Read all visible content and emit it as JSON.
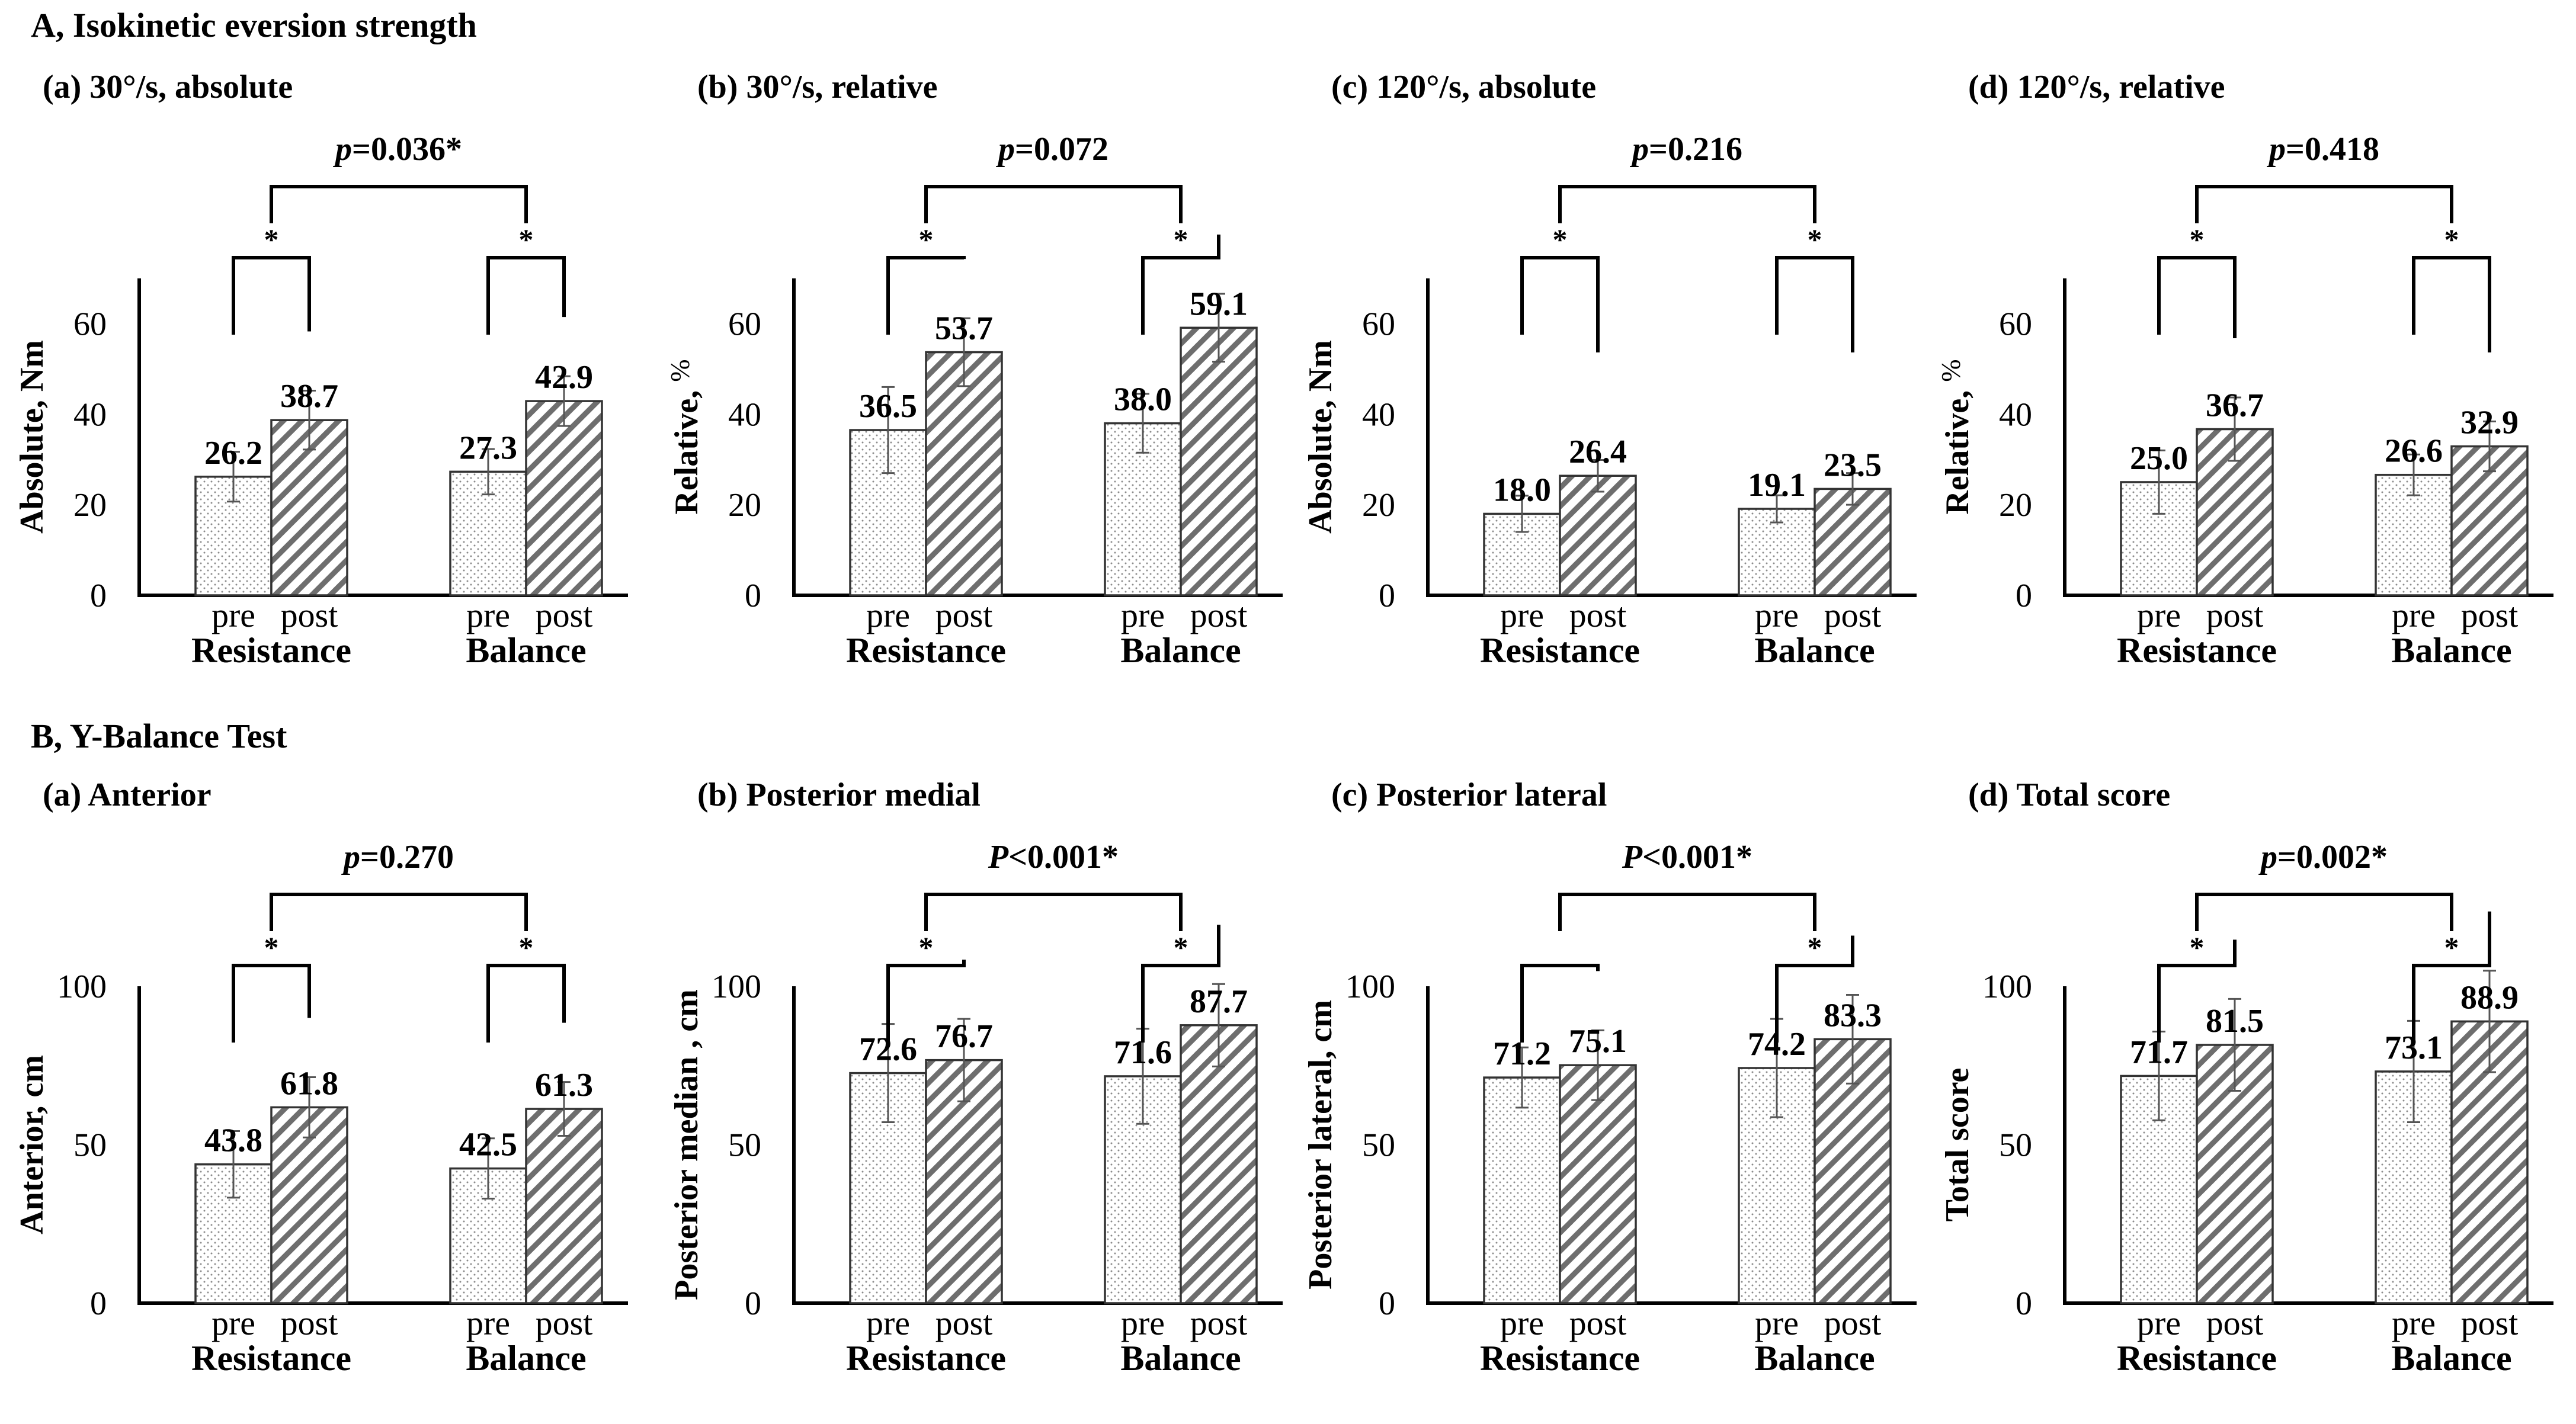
{
  "figure": {
    "section_a_title": "A, Isokinetic eversion strength",
    "section_b_title": "B, Y-Balance Test",
    "colors": {
      "axis": "#000000",
      "bar_stroke": "#333333",
      "pre_dots": "#8c8c8c",
      "post_hatch": "#6e6e6e",
      "error_bar": "#555555"
    }
  },
  "chart_data": [
    {
      "type": "bar",
      "panel": "A(a)",
      "title": "(a) 30°/s, absolute",
      "ylabel": "Absolute, Nm",
      "ylim": [
        0,
        70
      ],
      "yticks": [
        0,
        20,
        40,
        60
      ],
      "groups": [
        "Resistance",
        "Balance"
      ],
      "categories": [
        "pre",
        "post"
      ],
      "series": [
        {
          "name": "Resistance",
          "values": [
            26.2,
            38.7
          ],
          "labels": [
            "26.2",
            "38.7"
          ],
          "errors": [
            5.5,
            6.5
          ]
        },
        {
          "name": "Balance",
          "values": [
            27.3,
            42.9
          ],
          "labels": [
            "27.3",
            "42.9"
          ],
          "errors": [
            5.0,
            5.5
          ]
        }
      ],
      "within_sig": [
        "*",
        "*"
      ],
      "p_between": [
        "p",
        "=0.036*"
      ]
    },
    {
      "type": "bar",
      "panel": "A(b)",
      "title": "(b) 30°/s, relative",
      "ylabel": [
        "Relative,",
        "%"
      ],
      "ylim": [
        0,
        70
      ],
      "yticks": [
        0,
        20,
        40,
        60
      ],
      "groups": [
        "Resistance",
        "Balance"
      ],
      "categories": [
        "pre",
        "post"
      ],
      "series": [
        {
          "name": "Resistance",
          "values": [
            36.5,
            53.7
          ],
          "labels": [
            "36.5",
            "53.7"
          ],
          "errors": [
            9.5,
            7.5
          ]
        },
        {
          "name": "Balance",
          "values": [
            38.0,
            59.1
          ],
          "labels": [
            "38.0",
            "59.1"
          ],
          "errors": [
            6.5,
            7.5
          ]
        }
      ],
      "within_sig": [
        "*",
        "*"
      ],
      "p_between": [
        "p",
        "=0.072"
      ]
    },
    {
      "type": "bar",
      "panel": "A(c)",
      "title": "(c) 120°/s, absolute",
      "ylabel": "Absolute, Nm",
      "ylim": [
        0,
        70
      ],
      "yticks": [
        0,
        20,
        40,
        60
      ],
      "groups": [
        "Resistance",
        "Balance"
      ],
      "categories": [
        "pre",
        "post"
      ],
      "series": [
        {
          "name": "Resistance",
          "values": [
            18.0,
            26.4
          ],
          "labels": [
            "18.0",
            "26.4"
          ],
          "errors": [
            4.0,
            3.5
          ]
        },
        {
          "name": "Balance",
          "values": [
            19.1,
            23.5
          ],
          "labels": [
            "19.1",
            "23.5"
          ],
          "errors": [
            3.0,
            3.5
          ]
        }
      ],
      "within_sig": [
        "*",
        "*"
      ],
      "p_between": [
        "p",
        "=0.216"
      ]
    },
    {
      "type": "bar",
      "panel": "A(d)",
      "title": "(d) 120°/s, relative",
      "ylabel": [
        "Relative,",
        "%"
      ],
      "ylim": [
        0,
        70
      ],
      "yticks": [
        0,
        20,
        40,
        60
      ],
      "groups": [
        "Resistance",
        "Balance"
      ],
      "categories": [
        "pre",
        "post"
      ],
      "series": [
        {
          "name": "Resistance",
          "values": [
            25.0,
            36.7
          ],
          "labels": [
            "25.0",
            "36.7"
          ],
          "errors": [
            7.0,
            7.0
          ]
        },
        {
          "name": "Balance",
          "values": [
            26.6,
            32.9
          ],
          "labels": [
            "26.6",
            "32.9"
          ],
          "errors": [
            4.5,
            5.5
          ]
        }
      ],
      "within_sig": [
        "*",
        "*"
      ],
      "p_between": [
        "p",
        "=0.418"
      ]
    },
    {
      "type": "bar",
      "panel": "B(a)",
      "title": "(a) Anterior",
      "ylabel": "Anterior, cm",
      "ylim": [
        0,
        100
      ],
      "yticks": [
        0,
        50,
        100
      ],
      "groups": [
        "Resistance",
        "Balance"
      ],
      "categories": [
        "pre",
        "post"
      ],
      "series": [
        {
          "name": "Resistance",
          "values": [
            43.8,
            61.8
          ],
          "labels": [
            "43.8",
            "61.8"
          ],
          "errors": [
            10.5,
            9.5
          ]
        },
        {
          "name": "Balance",
          "values": [
            42.5,
            61.3
          ],
          "labels": [
            "42.5",
            "61.3"
          ],
          "errors": [
            9.5,
            8.5
          ]
        }
      ],
      "within_sig": [
        "*",
        "*"
      ],
      "p_between": [
        "p",
        "=0.270"
      ]
    },
    {
      "type": "bar",
      "panel": "B(b)",
      "title": "(b) Posterior medial",
      "ylabel": "Posterior median , cm",
      "ylim": [
        0,
        100
      ],
      "yticks": [
        0,
        50,
        100
      ],
      "groups": [
        "Resistance",
        "Balance"
      ],
      "categories": [
        "pre",
        "post"
      ],
      "series": [
        {
          "name": "Resistance",
          "values": [
            72.6,
            76.7
          ],
          "labels": [
            "72.6",
            "76.7"
          ],
          "errors": [
            15.5,
            13.0
          ]
        },
        {
          "name": "Balance",
          "values": [
            71.6,
            87.7
          ],
          "labels": [
            "71.6",
            "87.7"
          ],
          "errors": [
            15.0,
            13.0
          ]
        }
      ],
      "within_sig": [
        "*",
        "*"
      ],
      "p_between": [
        "P",
        "<0.001*"
      ]
    },
    {
      "type": "bar",
      "panel": "B(c)",
      "title": "(c) Posterior lateral",
      "ylabel": "Posterior lateral, cm",
      "ylim": [
        0,
        100
      ],
      "yticks": [
        0,
        50,
        100
      ],
      "groups": [
        "Resistance",
        "Balance"
      ],
      "categories": [
        "pre",
        "post"
      ],
      "series": [
        {
          "name": "Resistance",
          "values": [
            71.2,
            75.1
          ],
          "labels": [
            "71.2",
            "75.1"
          ],
          "errors": [
            9.5,
            11.0
          ]
        },
        {
          "name": "Balance",
          "values": [
            74.2,
            83.3
          ],
          "labels": [
            "74.2",
            "83.3"
          ],
          "errors": [
            15.5,
            14.0
          ]
        }
      ],
      "within_sig": [
        "",
        "*"
      ],
      "p_between": [
        "P",
        "<0.001*"
      ]
    },
    {
      "type": "bar",
      "panel": "B(d)",
      "title": "(d) Total score",
      "ylabel": "Total score",
      "ylim": [
        0,
        100
      ],
      "yticks": [
        0,
        50,
        100
      ],
      "groups": [
        "Resistance",
        "Balance"
      ],
      "categories": [
        "pre",
        "post"
      ],
      "series": [
        {
          "name": "Resistance",
          "values": [
            71.7,
            81.5
          ],
          "labels": [
            "71.7",
            "81.5"
          ],
          "errors": [
            14.0,
            14.5
          ]
        },
        {
          "name": "Balance",
          "values": [
            73.1,
            88.9
          ],
          "labels": [
            "73.1",
            "88.9"
          ],
          "errors": [
            16.0,
            16.0
          ]
        }
      ],
      "within_sig": [
        "*",
        "*"
      ],
      "p_between": [
        "p",
        "=0.002*"
      ]
    }
  ]
}
